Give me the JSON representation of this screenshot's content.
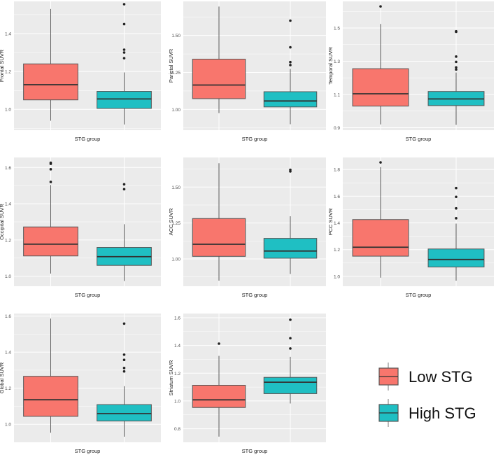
{
  "colors": {
    "low": "#F8766D",
    "high": "#1FBFC3",
    "panel": "#EBEBEB",
    "grid": "#FFFFFF",
    "line": "#333333"
  },
  "legend": {
    "items": [
      {
        "label": "Low STG",
        "group": "low"
      },
      {
        "label": "High STG",
        "group": "high"
      }
    ]
  },
  "chart_data": [
    {
      "type": "boxplot",
      "ylabel": "Frontal SUVR",
      "xlabel": "STG group",
      "ylim": [
        0.89,
        1.57
      ],
      "yticks": [
        "1.0",
        "1.2",
        "1.4"
      ],
      "ytick_values": [
        1.0,
        1.2,
        1.4
      ],
      "low": {
        "min": 0.94,
        "q1": 1.05,
        "median": 1.13,
        "q3": 1.24,
        "max": 1.53,
        "outliers": []
      },
      "high": {
        "min": 0.92,
        "q1": 1.005,
        "median": 1.055,
        "q3": 1.095,
        "max": 1.195,
        "outliers": [
          1.27,
          1.3,
          1.315,
          1.45,
          1.555
        ]
      }
    },
    {
      "type": "boxplot",
      "ylabel": "Parietal SUVR",
      "xlabel": "STG group",
      "ylim": [
        0.86,
        1.73
      ],
      "yticks": [
        "1.00",
        "1.25",
        "1.50"
      ],
      "ytick_values": [
        1.0,
        1.25,
        1.5
      ],
      "low": {
        "min": 0.975,
        "q1": 1.073,
        "median": 1.165,
        "q3": 1.34,
        "max": 1.695,
        "outliers": []
      },
      "high": {
        "min": 0.9,
        "q1": 1.017,
        "median": 1.057,
        "q3": 1.12,
        "max": 1.274,
        "outliers": [
          1.3,
          1.32,
          1.42,
          1.6
        ]
      }
    },
    {
      "type": "boxplot",
      "ylabel": "Temporal SUVR",
      "xlabel": "STG group",
      "ylim": [
        0.885,
        1.66
      ],
      "yticks": [
        "0.9",
        "1.1",
        "1.3",
        "1.5"
      ],
      "ytick_values": [
        0.9,
        1.1,
        1.3,
        1.5
      ],
      "low": {
        "min": 0.92,
        "q1": 1.03,
        "median": 1.104,
        "q3": 1.255,
        "max": 1.524,
        "outliers": [
          1.63
        ]
      },
      "high": {
        "min": 0.917,
        "q1": 1.033,
        "median": 1.073,
        "q3": 1.118,
        "max": 1.232,
        "outliers": [
          1.25,
          1.263,
          1.296,
          1.328,
          1.477,
          1.48
        ]
      }
    },
    {
      "type": "boxplot",
      "ylabel": "Occipital SUVR",
      "xlabel": "STG group",
      "ylim": [
        0.945,
        1.655
      ],
      "yticks": [
        "1.0",
        "1.2",
        "1.4",
        "1.6"
      ],
      "ytick_values": [
        1.0,
        1.2,
        1.4,
        1.6
      ],
      "low": {
        "min": 1.015,
        "q1": 1.112,
        "median": 1.177,
        "q3": 1.272,
        "max": 1.503,
        "outliers": [
          1.52,
          1.59,
          1.62,
          1.626
        ]
      },
      "high": {
        "min": 0.974,
        "q1": 1.06,
        "median": 1.108,
        "q3": 1.159,
        "max": 1.287,
        "outliers": [
          1.48,
          1.507
        ]
      }
    },
    {
      "type": "boxplot",
      "ylabel": "ACC SUVR",
      "xlabel": "STG group",
      "ylim": [
        0.81,
        1.706
      ],
      "yticks": [
        "1.00",
        "1.25",
        "1.50"
      ],
      "ytick_values": [
        1.0,
        1.25,
        1.5
      ],
      "low": {
        "min": 0.849,
        "q1": 1.018,
        "median": 1.102,
        "q3": 1.281,
        "max": 1.666,
        "outliers": []
      },
      "high": {
        "min": 0.895,
        "q1": 1.005,
        "median": 1.055,
        "q3": 1.143,
        "max": 1.297,
        "outliers": [
          1.609,
          1.62
        ]
      }
    },
    {
      "type": "boxplot",
      "ylabel": "PCC SUVR",
      "xlabel": "STG group",
      "ylim": [
        0.926,
        1.89
      ],
      "yticks": [
        "1.0",
        "1.2",
        "1.4",
        "1.6",
        "1.8"
      ],
      "ytick_values": [
        1.0,
        1.2,
        1.4,
        1.6,
        1.8
      ],
      "low": {
        "min": 0.99,
        "q1": 1.151,
        "median": 1.218,
        "q3": 1.425,
        "max": 1.818,
        "outliers": [
          1.853
        ]
      },
      "high": {
        "min": 0.968,
        "q1": 1.07,
        "median": 1.126,
        "q3": 1.205,
        "max": 1.395,
        "outliers": [
          1.435,
          1.509,
          1.595,
          1.661
        ]
      }
    },
    {
      "type": "boxplot",
      "ylabel": "Global SUVR",
      "xlabel": "STG group",
      "ylim": [
        0.9,
        1.614
      ],
      "yticks": [
        "1.0",
        "1.2",
        "1.4",
        "1.6"
      ],
      "ytick_values": [
        1.0,
        1.2,
        1.4,
        1.6
      ],
      "low": {
        "min": 0.953,
        "q1": 1.044,
        "median": 1.136,
        "q3": 1.266,
        "max": 1.586,
        "outliers": []
      },
      "high": {
        "min": 0.931,
        "q1": 1.018,
        "median": 1.059,
        "q3": 1.109,
        "max": 1.211,
        "outliers": [
          1.293,
          1.312,
          1.357,
          1.386,
          1.558
        ]
      }
    },
    {
      "type": "boxplot",
      "ylabel": "Striatum SUVR",
      "xlabel": "STG group",
      "ylim": [
        0.702,
        1.63
      ],
      "yticks": [
        "0.8",
        "1.0",
        "1.2",
        "1.4",
        "1.6"
      ],
      "ytick_values": [
        0.8,
        1.0,
        1.2,
        1.4,
        1.6
      ],
      "low": {
        "min": 0.743,
        "q1": 0.953,
        "median": 1.008,
        "q3": 1.113,
        "max": 1.325,
        "outliers": [
          1.413
        ]
      },
      "high": {
        "min": 0.982,
        "q1": 1.053,
        "median": 1.135,
        "q3": 1.17,
        "max": 1.318,
        "outliers": [
          1.378,
          1.452,
          1.585
        ]
      }
    }
  ]
}
